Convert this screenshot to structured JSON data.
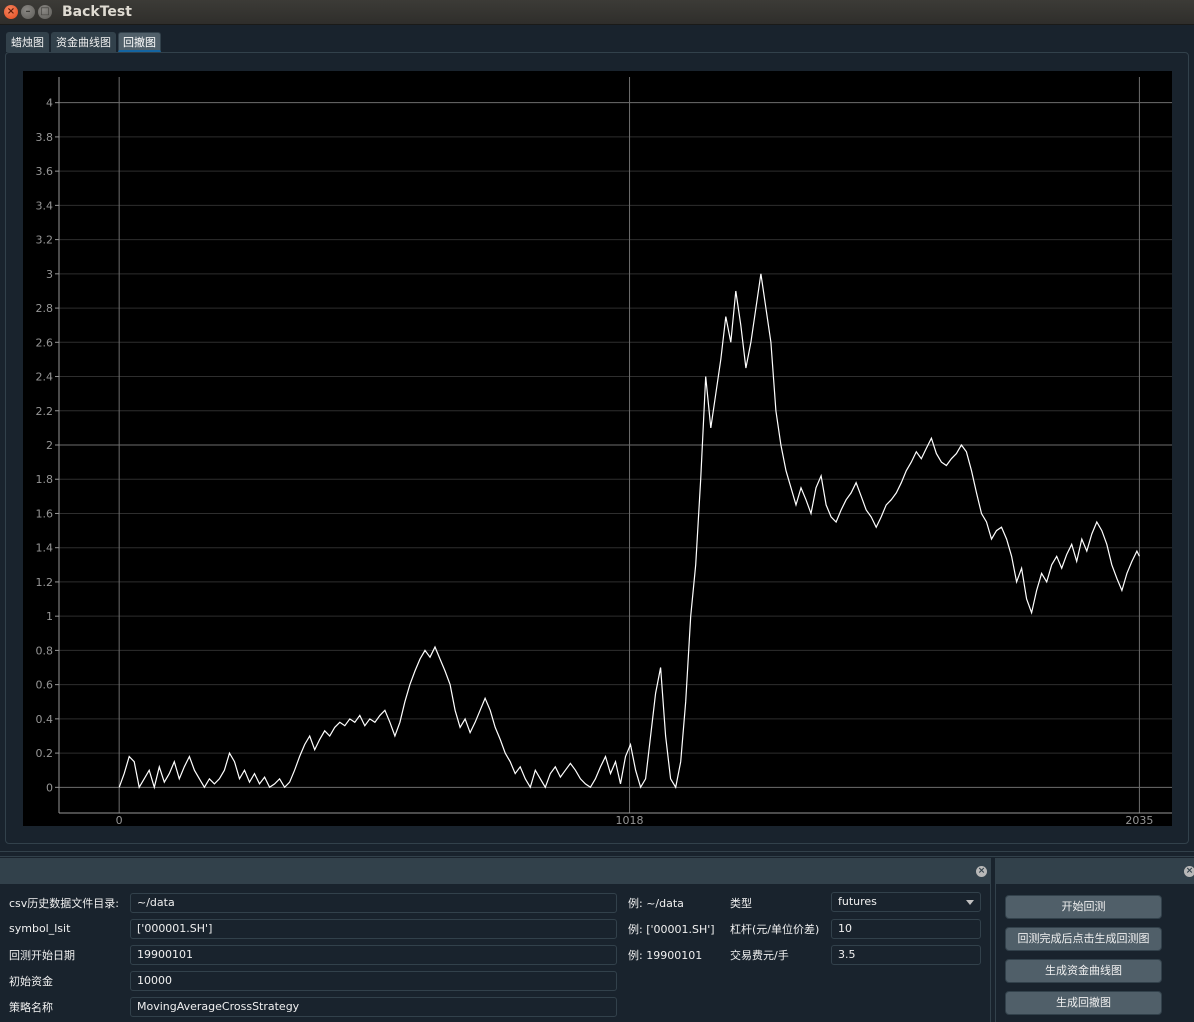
{
  "window": {
    "title": "BackTest"
  },
  "tabs": [
    {
      "label": "蜡烛图",
      "active": false
    },
    {
      "label": "资金曲线图",
      "active": false
    },
    {
      "label": "回撤图",
      "active": true
    }
  ],
  "chart_data": {
    "type": "line",
    "title": "",
    "xlabel": "",
    "ylabel": "",
    "xlim": [
      -120,
      2100
    ],
    "ylim": [
      -0.15,
      4.15
    ],
    "x_ticks": [
      0,
      1018,
      2035
    ],
    "y_ticks": [
      0,
      0.2,
      0.4,
      0.6,
      0.8,
      1,
      1.2,
      1.4,
      1.6,
      1.8,
      2,
      2.2,
      2.4,
      2.6,
      2.8,
      3,
      3.2,
      3.4,
      3.6,
      3.8,
      4
    ],
    "grid": true,
    "series": [
      {
        "color": "#ffffff",
        "points": [
          [
            0,
            0
          ],
          [
            10,
            0.08
          ],
          [
            20,
            0.18
          ],
          [
            30,
            0.15
          ],
          [
            40,
            0
          ],
          [
            50,
            0.05
          ],
          [
            60,
            0.1
          ],
          [
            70,
            0
          ],
          [
            80,
            0.12
          ],
          [
            90,
            0.03
          ],
          [
            100,
            0.08
          ],
          [
            110,
            0.15
          ],
          [
            120,
            0.05
          ],
          [
            130,
            0.12
          ],
          [
            140,
            0.18
          ],
          [
            150,
            0.1
          ],
          [
            160,
            0.05
          ],
          [
            170,
            0
          ],
          [
            180,
            0.05
          ],
          [
            190,
            0.02
          ],
          [
            200,
            0.05
          ],
          [
            210,
            0.1
          ],
          [
            220,
            0.2
          ],
          [
            230,
            0.15
          ],
          [
            240,
            0.05
          ],
          [
            250,
            0.1
          ],
          [
            260,
            0.03
          ],
          [
            270,
            0.08
          ],
          [
            280,
            0.02
          ],
          [
            290,
            0.06
          ],
          [
            300,
            0
          ],
          [
            310,
            0.02
          ],
          [
            320,
            0.05
          ],
          [
            330,
            0
          ],
          [
            340,
            0.03
          ],
          [
            350,
            0.1
          ],
          [
            360,
            0.18
          ],
          [
            370,
            0.25
          ],
          [
            380,
            0.3
          ],
          [
            390,
            0.22
          ],
          [
            400,
            0.28
          ],
          [
            410,
            0.33
          ],
          [
            420,
            0.3
          ],
          [
            430,
            0.35
          ],
          [
            440,
            0.38
          ],
          [
            450,
            0.36
          ],
          [
            460,
            0.4
          ],
          [
            470,
            0.38
          ],
          [
            480,
            0.42
          ],
          [
            490,
            0.36
          ],
          [
            500,
            0.4
          ],
          [
            510,
            0.38
          ],
          [
            520,
            0.42
          ],
          [
            530,
            0.45
          ],
          [
            540,
            0.38
          ],
          [
            550,
            0.3
          ],
          [
            560,
            0.38
          ],
          [
            570,
            0.5
          ],
          [
            580,
            0.6
          ],
          [
            590,
            0.68
          ],
          [
            600,
            0.75
          ],
          [
            610,
            0.8
          ],
          [
            620,
            0.76
          ],
          [
            630,
            0.82
          ],
          [
            640,
            0.75
          ],
          [
            650,
            0.68
          ],
          [
            660,
            0.6
          ],
          [
            670,
            0.45
          ],
          [
            680,
            0.35
          ],
          [
            690,
            0.4
          ],
          [
            700,
            0.32
          ],
          [
            710,
            0.38
          ],
          [
            720,
            0.45
          ],
          [
            730,
            0.52
          ],
          [
            740,
            0.45
          ],
          [
            750,
            0.35
          ],
          [
            760,
            0.28
          ],
          [
            770,
            0.2
          ],
          [
            780,
            0.15
          ],
          [
            790,
            0.08
          ],
          [
            800,
            0.12
          ],
          [
            810,
            0.05
          ],
          [
            820,
            0
          ],
          [
            830,
            0.1
          ],
          [
            840,
            0.05
          ],
          [
            850,
            0
          ],
          [
            860,
            0.08
          ],
          [
            870,
            0.12
          ],
          [
            880,
            0.06
          ],
          [
            890,
            0.1
          ],
          [
            900,
            0.14
          ],
          [
            910,
            0.1
          ],
          [
            920,
            0.05
          ],
          [
            930,
            0.02
          ],
          [
            940,
            0
          ],
          [
            950,
            0.05
          ],
          [
            960,
            0.12
          ],
          [
            970,
            0.18
          ],
          [
            980,
            0.08
          ],
          [
            990,
            0.15
          ],
          [
            1000,
            0.02
          ],
          [
            1010,
            0.18
          ],
          [
            1020,
            0.25
          ],
          [
            1030,
            0.1
          ],
          [
            1040,
            0
          ],
          [
            1050,
            0.05
          ],
          [
            1060,
            0.3
          ],
          [
            1070,
            0.55
          ],
          [
            1080,
            0.7
          ],
          [
            1090,
            0.3
          ],
          [
            1100,
            0.05
          ],
          [
            1110,
            0
          ],
          [
            1120,
            0.15
          ],
          [
            1130,
            0.5
          ],
          [
            1140,
            1.0
          ],
          [
            1150,
            1.3
          ],
          [
            1160,
            1.8
          ],
          [
            1170,
            2.4
          ],
          [
            1180,
            2.1
          ],
          [
            1190,
            2.3
          ],
          [
            1200,
            2.5
          ],
          [
            1210,
            2.75
          ],
          [
            1220,
            2.6
          ],
          [
            1230,
            2.9
          ],
          [
            1240,
            2.7
          ],
          [
            1250,
            2.45
          ],
          [
            1260,
            2.6
          ],
          [
            1270,
            2.8
          ],
          [
            1280,
            3.0
          ],
          [
            1290,
            2.8
          ],
          [
            1300,
            2.6
          ],
          [
            1310,
            2.2
          ],
          [
            1320,
            2.0
          ],
          [
            1330,
            1.85
          ],
          [
            1340,
            1.75
          ],
          [
            1350,
            1.65
          ],
          [
            1360,
            1.75
          ],
          [
            1370,
            1.68
          ],
          [
            1380,
            1.6
          ],
          [
            1390,
            1.75
          ],
          [
            1400,
            1.82
          ],
          [
            1410,
            1.65
          ],
          [
            1420,
            1.58
          ],
          [
            1430,
            1.55
          ],
          [
            1440,
            1.62
          ],
          [
            1450,
            1.68
          ],
          [
            1460,
            1.72
          ],
          [
            1470,
            1.78
          ],
          [
            1480,
            1.7
          ],
          [
            1490,
            1.62
          ],
          [
            1500,
            1.58
          ],
          [
            1510,
            1.52
          ],
          [
            1520,
            1.58
          ],
          [
            1530,
            1.65
          ],
          [
            1540,
            1.68
          ],
          [
            1550,
            1.72
          ],
          [
            1560,
            1.78
          ],
          [
            1570,
            1.85
          ],
          [
            1580,
            1.9
          ],
          [
            1590,
            1.96
          ],
          [
            1600,
            1.92
          ],
          [
            1610,
            1.98
          ],
          [
            1620,
            2.04
          ],
          [
            1630,
            1.95
          ],
          [
            1640,
            1.9
          ],
          [
            1650,
            1.88
          ],
          [
            1660,
            1.92
          ],
          [
            1670,
            1.95
          ],
          [
            1680,
            2.0
          ],
          [
            1690,
            1.96
          ],
          [
            1700,
            1.85
          ],
          [
            1710,
            1.72
          ],
          [
            1720,
            1.6
          ],
          [
            1730,
            1.55
          ],
          [
            1740,
            1.45
          ],
          [
            1750,
            1.5
          ],
          [
            1760,
            1.52
          ],
          [
            1770,
            1.45
          ],
          [
            1780,
            1.35
          ],
          [
            1790,
            1.2
          ],
          [
            1800,
            1.28
          ],
          [
            1810,
            1.1
          ],
          [
            1820,
            1.02
          ],
          [
            1830,
            1.15
          ],
          [
            1840,
            1.25
          ],
          [
            1850,
            1.2
          ],
          [
            1860,
            1.3
          ],
          [
            1870,
            1.35
          ],
          [
            1880,
            1.28
          ],
          [
            1890,
            1.36
          ],
          [
            1900,
            1.42
          ],
          [
            1910,
            1.32
          ],
          [
            1920,
            1.45
          ],
          [
            1930,
            1.38
          ],
          [
            1940,
            1.48
          ],
          [
            1950,
            1.55
          ],
          [
            1960,
            1.5
          ],
          [
            1970,
            1.42
          ],
          [
            1980,
            1.3
          ],
          [
            1990,
            1.22
          ],
          [
            2000,
            1.15
          ],
          [
            2010,
            1.25
          ],
          [
            2020,
            1.32
          ],
          [
            2030,
            1.38
          ],
          [
            2035,
            1.35
          ]
        ]
      }
    ]
  },
  "form": {
    "csv_dir": {
      "label": "csv历史数据文件目录:",
      "value": "~/data",
      "hint": "例: ~/data"
    },
    "symbol_list": {
      "label": "symbol_lsit",
      "value": "['000001.SH']",
      "hint": "例: ['00001.SH']"
    },
    "start_date": {
      "label": "回测开始日期",
      "value": "19900101",
      "hint": "例: 19900101"
    },
    "initial_capital": {
      "label": "初始资金",
      "value": "10000"
    },
    "strategy_name": {
      "label": "策略名称",
      "value": "MovingAverageCrossStrategy"
    },
    "type": {
      "label": "类型",
      "value": "futures"
    },
    "leverage": {
      "label": "杠杆(元/单位价差)",
      "value": "10"
    },
    "fee": {
      "label": "交易费元/手",
      "value": "3.5"
    }
  },
  "buttons": {
    "start": "开始回测",
    "gen_drawdown_after": "回测完成后点击生成回测图",
    "gen_equity": "生成资金曲线图",
    "gen_drawdown": "生成回撤图"
  },
  "colors": {
    "accent": "#1464a0",
    "background": "#19232d",
    "panel": "#32414b",
    "button": "#505f69"
  }
}
